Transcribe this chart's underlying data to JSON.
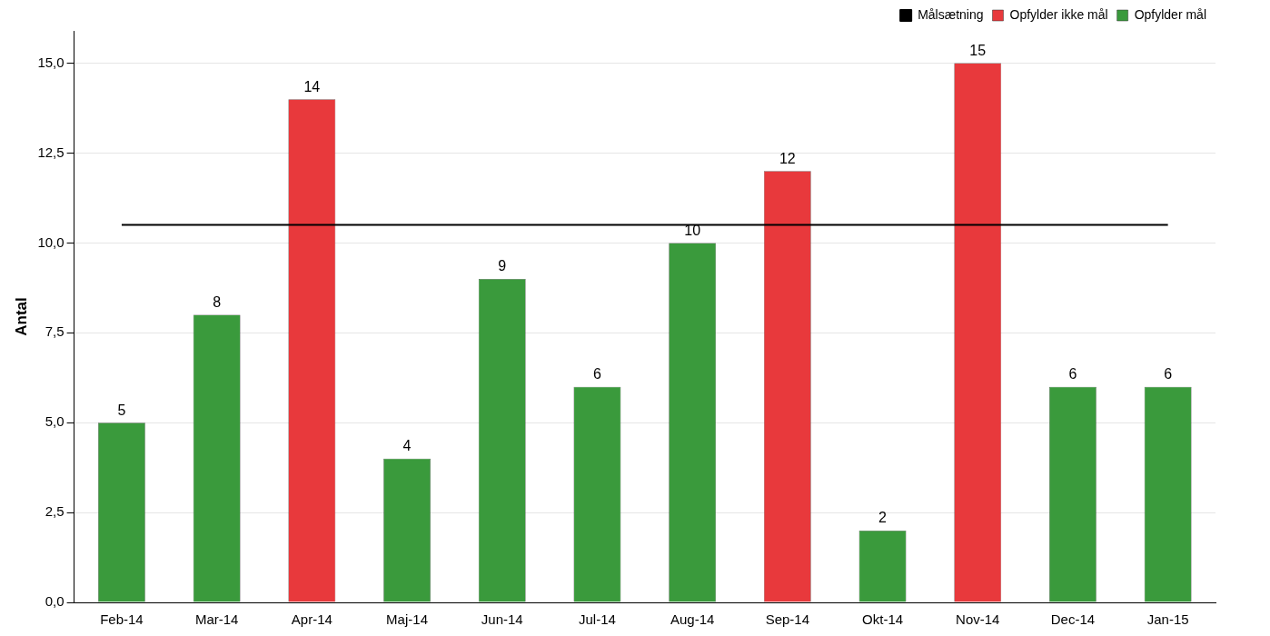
{
  "chart_data": {
    "type": "bar",
    "ylabel": "Antal",
    "categories": [
      "Feb-14",
      "Mar-14",
      "Apr-14",
      "Maj-14",
      "Jun-14",
      "Jul-14",
      "Aug-14",
      "Sep-14",
      "Okt-14",
      "Nov-14",
      "Dec-14",
      "Jan-15"
    ],
    "series": [
      {
        "name": "Opfylder ikke mål",
        "color": "#e8393c",
        "values": [
          null,
          null,
          14,
          null,
          null,
          null,
          null,
          12,
          null,
          15,
          null,
          null
        ],
        "value_labels": [
          null,
          null,
          "14",
          null,
          null,
          null,
          null,
          "12",
          null,
          "15",
          null,
          null
        ]
      },
      {
        "name": "Opfylder mål",
        "color": "#3a9a3c",
        "values": [
          5,
          8,
          null,
          4,
          9,
          6,
          10,
          null,
          2,
          null,
          6,
          6
        ],
        "value_labels": [
          "5",
          "8",
          null,
          "4",
          "9",
          "6",
          "10",
          null,
          "2",
          null,
          "6",
          "6"
        ]
      },
      {
        "name": "Målsætning",
        "type": "line",
        "color": "#000000",
        "values": [
          10.5,
          10.5,
          10.5,
          10.5,
          10.5,
          10.5,
          10.5,
          10.5,
          10.5,
          10.5,
          10.5,
          10.5
        ]
      }
    ],
    "ylim": [
      0,
      15.9
    ],
    "yticks": [
      {
        "value": 0,
        "label": "0,0"
      },
      {
        "value": 2.5,
        "label": "2,5"
      },
      {
        "value": 5,
        "label": "5,0"
      },
      {
        "value": 7.5,
        "label": "7,5"
      },
      {
        "value": 10,
        "label": "10,0"
      },
      {
        "value": 12.5,
        "label": "12,5"
      },
      {
        "value": 15,
        "label": "15,0"
      }
    ],
    "grid": "y",
    "legend": "top right",
    "marker": "none"
  }
}
